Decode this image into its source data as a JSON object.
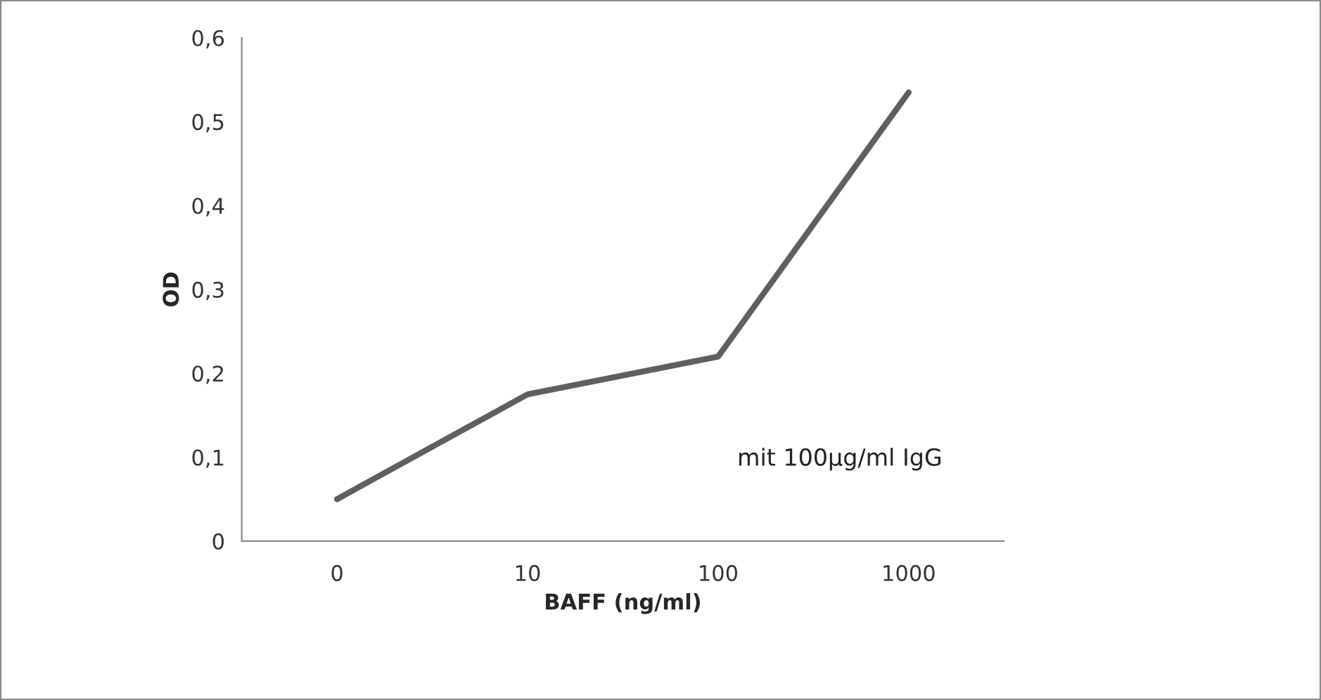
{
  "chart_data": {
    "type": "line",
    "xlabel": "BAFF (ng/ml)",
    "ylabel": "OD",
    "categories": [
      "0",
      "10",
      "100",
      "1000"
    ],
    "series": [
      {
        "color": "#5f5f5f",
        "values": [
          0.05,
          0.175,
          0.22,
          0.535
        ]
      }
    ],
    "ylim": [
      0,
      0.6
    ],
    "yticks": [
      {
        "value": 0,
        "label": "0"
      },
      {
        "value": 0.1,
        "label": "0,1"
      },
      {
        "value": 0.2,
        "label": "0,2"
      },
      {
        "value": 0.3,
        "label": "0,3"
      },
      {
        "value": 0.4,
        "label": "0,4"
      },
      {
        "value": 0.5,
        "label": "0,5"
      },
      {
        "value": 0.6,
        "label": "0,6"
      }
    ],
    "annotations": [
      "mit 100µg/ml IgG"
    ],
    "grid": false,
    "legend": false,
    "marker": "none",
    "line_style": "solid"
  }
}
